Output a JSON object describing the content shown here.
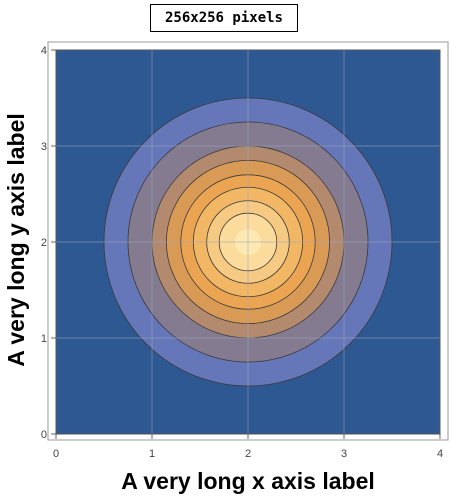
{
  "chart_data": {
    "type": "contour",
    "title": "256x256 pixels",
    "xlabel": "A very long x axis label",
    "ylabel": "A very long y axis label",
    "xlim": [
      0,
      4
    ],
    "ylim": [
      0,
      4
    ],
    "xticks": [
      0,
      1,
      2,
      3,
      4
    ],
    "yticks": [
      0,
      1,
      2,
      3,
      4
    ],
    "grid": true,
    "center": [
      2,
      2
    ],
    "contour_radii": [
      1.5,
      1.25,
      1.0,
      0.85,
      0.7,
      0.57,
      0.43,
      0.3
    ],
    "colors": {
      "background": "#2e5892",
      "levels": [
        "#6577b8",
        "#857b90",
        "#b38a6e",
        "#d99a55",
        "#eba552",
        "#f1b764",
        "#f6ca82",
        "#fbdc9d",
        "#fee8b3"
      ],
      "contour_line": "#3a3a3a",
      "grid": "#9aa7bd"
    }
  }
}
